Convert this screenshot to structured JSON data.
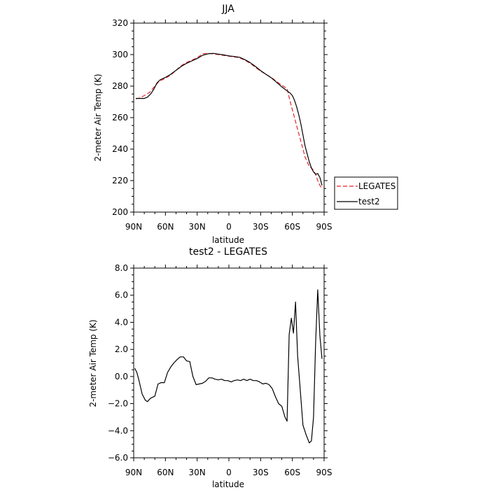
{
  "chart_data": [
    {
      "type": "line",
      "title": "JJA",
      "xlabel": "latitude",
      "ylabel": "2-meter Air Temp (K)",
      "xlim": [
        90,
        -90
      ],
      "ylim": [
        200,
        320
      ],
      "xticks": [
        90,
        60,
        30,
        0,
        -30,
        -60,
        -90
      ],
      "xtick_labels": [
        "90N",
        "60N",
        "30N",
        "0",
        "30S",
        "60S",
        "90S"
      ],
      "yticks": [
        200,
        220,
        240,
        260,
        280,
        300,
        320
      ],
      "ytick_labels": [
        "200",
        "220",
        "240",
        "260",
        "280",
        "300",
        "320"
      ],
      "legend_position": "right",
      "series": [
        {
          "name": "LEGATES",
          "color": "#e8242b",
          "dash": "dashed",
          "x": [
            88,
            84,
            80,
            75,
            70,
            66,
            60,
            55,
            50,
            45,
            40,
            35,
            30,
            25,
            20,
            15,
            10,
            5,
            0,
            -5,
            -10,
            -15,
            -20,
            -25,
            -30,
            -35,
            -40,
            -45,
            -50,
            -55,
            -58,
            -60,
            -62,
            -64,
            -66,
            -68,
            -70,
            -72,
            -74,
            -76,
            -78,
            -80,
            -82,
            -84,
            -86,
            -88
          ],
          "y": [
            272,
            272.5,
            274,
            276,
            280,
            283,
            285,
            287,
            290,
            293,
            295,
            296.5,
            298,
            300.5,
            300.8,
            300.5,
            300,
            299.5,
            299,
            298.5,
            298,
            296.5,
            294.5,
            292,
            289.5,
            287.5,
            285.5,
            283,
            280.5,
            278.5,
            270,
            265,
            260,
            255,
            250,
            245,
            240,
            235,
            232,
            229,
            228,
            226.5,
            224,
            220,
            217,
            215
          ]
        },
        {
          "name": "test2",
          "color": "#000000",
          "dash": "solid",
          "x": [
            88,
            84,
            80,
            77,
            74,
            71,
            68,
            65,
            60,
            55,
            50,
            45,
            40,
            35,
            30,
            25,
            20,
            15,
            10,
            5,
            0,
            -5,
            -10,
            -15,
            -20,
            -25,
            -30,
            -35,
            -40,
            -45,
            -50,
            -55,
            -58,
            -60,
            -62,
            -64,
            -66,
            -68,
            -70,
            -72,
            -74,
            -76,
            -78,
            -80,
            -82,
            -84,
            -86,
            -88
          ],
          "y": [
            272.2,
            272.2,
            272.2,
            273,
            275,
            278,
            282,
            284,
            285.5,
            287.5,
            290,
            292.5,
            294.5,
            296,
            297.5,
            299.5,
            300.5,
            300.8,
            300.3,
            299.8,
            299.2,
            298.8,
            298.3,
            296.8,
            295,
            292.5,
            289.8,
            287.5,
            285.3,
            282.5,
            279.5,
            277,
            275.5,
            274,
            271,
            267,
            262,
            256,
            249,
            242,
            237,
            232,
            228,
            225.5,
            224,
            224.5,
            222,
            217
          ]
        }
      ]
    },
    {
      "type": "line",
      "title": "test2 - LEGATES",
      "xlabel": "latitude",
      "ylabel": "2-meter Air Temp (K)",
      "xlim": [
        90,
        -90
      ],
      "ylim": [
        -6,
        8
      ],
      "xticks": [
        90,
        60,
        30,
        0,
        -30,
        -60,
        -90
      ],
      "xtick_labels": [
        "90N",
        "60N",
        "30N",
        "0",
        "30S",
        "60S",
        "90S"
      ],
      "yticks": [
        -6,
        -4,
        -2,
        0,
        2,
        4,
        6,
        8
      ],
      "ytick_labels": [
        "−6.0",
        "−4.0",
        "−2.0",
        "0.0",
        "2.0",
        "4.0",
        "6.0",
        "8.0"
      ],
      "series": [
        {
          "color": "#000000",
          "dash": "solid",
          "x": [
            89,
            87,
            85,
            82,
            79,
            77,
            74,
            70,
            67,
            64,
            61,
            58,
            55,
            52,
            49,
            46,
            43,
            40,
            37,
            34,
            31,
            28,
            25,
            22,
            19,
            16,
            13,
            10,
            7,
            4,
            1,
            -2,
            -5,
            -8,
            -11,
            -14,
            -17,
            -20,
            -23,
            -26,
            -29,
            -32,
            -35,
            -38,
            -41,
            -44,
            -47,
            -50,
            -53,
            -55,
            -57,
            -59,
            -61,
            -63,
            -65,
            -67,
            -70,
            -73,
            -76,
            -78,
            -80,
            -82,
            -84,
            -86,
            -88
          ],
          "y": [
            0.6,
            0.3,
            -0.3,
            -1.3,
            -1.75,
            -1.85,
            -1.6,
            -1.45,
            -0.55,
            -0.45,
            -0.45,
            0.3,
            0.7,
            1.0,
            1.25,
            1.45,
            1.45,
            1.15,
            1.1,
            0,
            -0.6,
            -0.55,
            -0.5,
            -0.35,
            -0.1,
            -0.1,
            -0.2,
            -0.25,
            -0.2,
            -0.3,
            -0.3,
            -0.4,
            -0.3,
            -0.25,
            -0.3,
            -0.2,
            -0.3,
            -0.2,
            -0.3,
            -0.3,
            -0.4,
            -0.55,
            -0.5,
            -0.6,
            -0.9,
            -1.5,
            -2.0,
            -2.2,
            -3.0,
            -3.3,
            3.1,
            4.3,
            3.2,
            5.5,
            1.5,
            -0.5,
            -3.6,
            -4.3,
            -4.9,
            -4.75,
            -3.0,
            2.5,
            6.4,
            3.0,
            1.3
          ]
        }
      ]
    }
  ]
}
